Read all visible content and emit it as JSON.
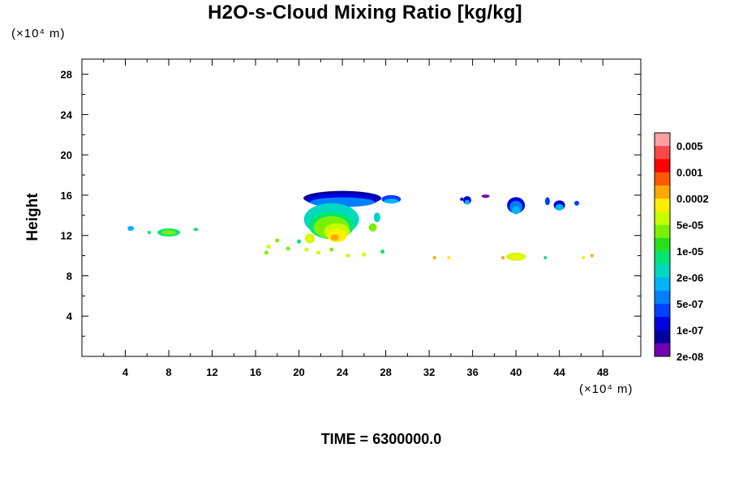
{
  "chart_data": {
    "type": "heatmap",
    "title": "H2O-s-Cloud Mixing Ratio [kg/kg]",
    "xlabel": "",
    "ylabel": "Height",
    "x_unit": "(×10⁴ m)",
    "y_unit": "(×10⁴ m)",
    "xlim": [
      0,
      51.5
    ],
    "ylim": [
      0,
      29.5
    ],
    "x_ticks": [
      4,
      8,
      12,
      16,
      20,
      24,
      28,
      32,
      36,
      40,
      44,
      48
    ],
    "y_ticks": [
      4,
      8,
      12,
      16,
      20,
      24,
      28
    ],
    "colorbar": {
      "labels": [
        "0.005",
        "0.001",
        "0.0002",
        "5e-05",
        "1e-05",
        "2e-06",
        "5e-07",
        "1e-07",
        "2e-08"
      ],
      "colors": [
        "#fc9fa0",
        "#fa4747",
        "#ff0000",
        "#ff5a00",
        "#ffa800",
        "#ffee00",
        "#c8ff00",
        "#7cf000",
        "#28e020",
        "#00e676",
        "#00d8c0",
        "#00b4ff",
        "#0080ff",
        "#0040ff",
        "#0000e0",
        "#00009c",
        "#7000b0"
      ]
    },
    "features": [
      {
        "x": 4.5,
        "y": 12.7,
        "level": "2e-06"
      },
      {
        "x": 8.0,
        "y": 12.3,
        "level": "1e-05"
      },
      {
        "x": 10.5,
        "y": 12.6,
        "level": "1e-05"
      },
      {
        "x": 17.5,
        "y": 10.7,
        "level": "5e-05"
      },
      {
        "x": 21.5,
        "y": 15.5,
        "level": "2e-08"
      },
      {
        "x": 24.0,
        "y": 15.8,
        "level": "1e-07"
      },
      {
        "x": 23.0,
        "y": 13.0,
        "level": "1e-05"
      },
      {
        "x": 23.5,
        "y": 12.0,
        "level": "0.0002"
      },
      {
        "x": 28.5,
        "y": 15.5,
        "level": "1e-07"
      },
      {
        "x": 32.5,
        "y": 9.8,
        "level": "0.0002"
      },
      {
        "x": 35.5,
        "y": 15.5,
        "level": "1e-07"
      },
      {
        "x": 40.0,
        "y": 15.0,
        "level": "1e-07"
      },
      {
        "x": 40.0,
        "y": 9.9,
        "level": "5e-05"
      },
      {
        "x": 44.0,
        "y": 15.1,
        "level": "1e-07"
      },
      {
        "x": 47.0,
        "y": 10.0,
        "level": "0.0002"
      }
    ]
  },
  "time_label": "TIME = 6300000.0"
}
